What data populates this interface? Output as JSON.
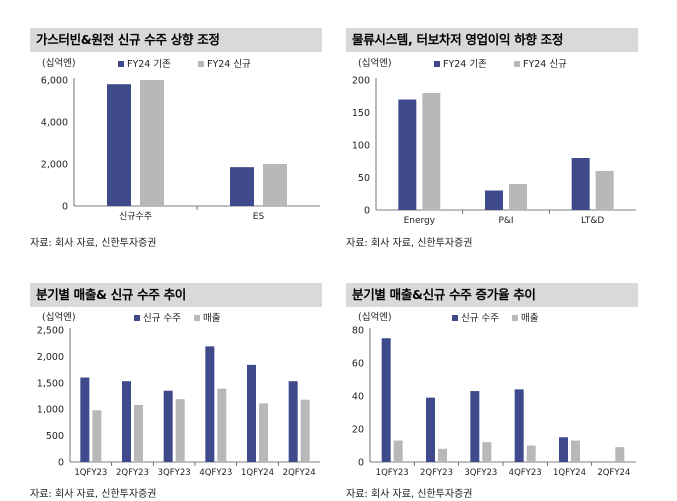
{
  "colors": {
    "series1": "#3e4a8b",
    "series2": "#b8b8b8",
    "header_bg": "#d9d9d9"
  },
  "chart_data": [
    {
      "type": "bar",
      "title": "가스터빈&원전 신규 수주 상향 조정",
      "unit": "(십억엔)",
      "categories": [
        "신규수주",
        "ES"
      ],
      "series": [
        {
          "name": "FY24 기존",
          "values": [
            5800,
            1850
          ]
        },
        {
          "name": "FY24 신규",
          "values": [
            6000,
            2000
          ]
        }
      ],
      "ylim": [
        0,
        6000
      ],
      "yticks": [
        "0",
        "2,000",
        "4,000",
        "6,000"
      ],
      "yticks_values": [
        0,
        2000,
        4000,
        6000
      ],
      "source": "자료: 회사 자료, 신한투자증권",
      "legend": "top"
    },
    {
      "type": "bar",
      "title": "물류시스템, 터보차저 영업이익 하향 조정",
      "unit": "(십억엔)",
      "categories": [
        "Energy",
        "P&I",
        "LT&D"
      ],
      "series": [
        {
          "name": "FY24 기존",
          "values": [
            170,
            30,
            80
          ]
        },
        {
          "name": "FY24 신규",
          "values": [
            180,
            40,
            60
          ]
        }
      ],
      "ylim": [
        0,
        200
      ],
      "yticks": [
        "0",
        "50",
        "100",
        "150",
        "200"
      ],
      "yticks_values": [
        0,
        50,
        100,
        150,
        200
      ],
      "source": "자료: 회사 자료, 신한투자증권",
      "legend": "top"
    },
    {
      "type": "bar",
      "title": "분기별 매출& 신규 수주 추이",
      "unit": "(십억엔)",
      "categories": [
        "1QFY23",
        "2QFY23",
        "3QFY23",
        "4QFY23",
        "1QFY24",
        "2QFY24"
      ],
      "series": [
        {
          "name": "신규 수주",
          "values": [
            1600,
            1530,
            1350,
            2190,
            1840,
            1530
          ]
        },
        {
          "name": "매출",
          "values": [
            980,
            1080,
            1190,
            1390,
            1110,
            1180
          ]
        }
      ],
      "ylim": [
        0,
        2500
      ],
      "yticks": [
        "0",
        "500",
        "1,000",
        "1,500",
        "2,000",
        "2,500"
      ],
      "yticks_values": [
        0,
        500,
        1000,
        1500,
        2000,
        2500
      ],
      "source": "자료: 회사 자료, 신한투자증권",
      "legend": "top"
    },
    {
      "type": "bar",
      "title": "분기별 매출&신규 수주 증가율 추이",
      "unit": "(십억엔)",
      "categories": [
        "1QFY23",
        "2QFY23",
        "3QFY23",
        "4QFY23",
        "1QFY24",
        "2QFY24"
      ],
      "series": [
        {
          "name": "신규 수주",
          "values": [
            75,
            39,
            43,
            44,
            15,
            0
          ]
        },
        {
          "name": "매출",
          "values": [
            13,
            8,
            12,
            10,
            13,
            9
          ]
        }
      ],
      "ylim": [
        0,
        80
      ],
      "yticks": [
        "0",
        "20",
        "40",
        "60",
        "80"
      ],
      "yticks_values": [
        0,
        20,
        40,
        60,
        80
      ],
      "source": "자료: 회사 자료, 신한투자증권",
      "legend": "top"
    }
  ]
}
